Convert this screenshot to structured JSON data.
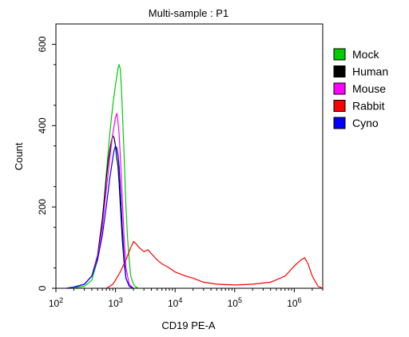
{
  "chart_data": {
    "type": "line",
    "title": "Multi-sample : P1",
    "xlabel": "CD19 PE-A",
    "ylabel": "Count",
    "x_scale": "log",
    "xlim": [
      100,
      3000000
    ],
    "ylim": [
      0,
      650
    ],
    "x_ticks": [
      {
        "value": 100,
        "base": "10",
        "exp": "2"
      },
      {
        "value": 1000,
        "base": "10",
        "exp": "3"
      },
      {
        "value": 10000,
        "base": "10",
        "exp": "4"
      },
      {
        "value": 100000,
        "base": "10",
        "exp": "5"
      },
      {
        "value": 1000000,
        "base": "10",
        "exp": "6"
      }
    ],
    "y_ticks": [
      0,
      200,
      400,
      600
    ],
    "y_tick_labels": [
      "0",
      "200",
      "400",
      "600"
    ],
    "grid": false,
    "legend_position": "right",
    "series": [
      {
        "name": "Mock",
        "color": "#00cc00",
        "x": [
          180,
          220,
          300,
          400,
          500,
          600,
          700,
          800,
          900,
          1000,
          1100,
          1150,
          1200,
          1250,
          1300,
          1350,
          1400,
          1450,
          1500,
          1600,
          1700,
          1800,
          2000,
          2200,
          2500
        ],
        "y": [
          0,
          2,
          5,
          20,
          70,
          160,
          280,
          380,
          450,
          500,
          540,
          550,
          540,
          500,
          440,
          380,
          320,
          260,
          200,
          120,
          70,
          30,
          10,
          3,
          0
        ]
      },
      {
        "name": "Human",
        "color": "#000000",
        "x": [
          150,
          200,
          300,
          400,
          500,
          600,
          650,
          700,
          750,
          800,
          850,
          900,
          950,
          1000,
          1050,
          1100,
          1150,
          1200,
          1300,
          1400,
          1500,
          1700,
          2000
        ],
        "y": [
          0,
          3,
          10,
          30,
          80,
          170,
          220,
          270,
          310,
          340,
          360,
          375,
          370,
          350,
          320,
          300,
          260,
          210,
          120,
          60,
          25,
          5,
          0
        ]
      },
      {
        "name": "Mouse",
        "color": "#ff00ff",
        "x": [
          150,
          200,
          300,
          400,
          500,
          600,
          700,
          800,
          900,
          950,
          1000,
          1050,
          1100,
          1150,
          1200,
          1300,
          1400,
          1500,
          1700,
          2000
        ],
        "y": [
          0,
          3,
          10,
          30,
          75,
          150,
          240,
          320,
          380,
          400,
          420,
          430,
          410,
          380,
          330,
          220,
          120,
          50,
          10,
          0
        ]
      },
      {
        "name": "Rabbit",
        "color": "#ff0000",
        "x": [
          700,
          800,
          900,
          1000,
          1200,
          1500,
          1800,
          2000,
          2200,
          2500,
          3000,
          3500,
          4000,
          5000,
          6000,
          8000,
          10000,
          15000,
          20000,
          30000,
          50000,
          100000,
          200000,
          400000,
          700000,
          1000000,
          1300000,
          1500000,
          1700000,
          2000000,
          2500000,
          3000000
        ],
        "y": [
          0,
          5,
          10,
          20,
          40,
          70,
          100,
          115,
          110,
          100,
          90,
          95,
          85,
          70,
          60,
          50,
          40,
          30,
          25,
          15,
          10,
          8,
          10,
          15,
          30,
          55,
          70,
          75,
          60,
          30,
          5,
          0
        ]
      },
      {
        "name": "Cyno",
        "color": "#0000ff",
        "x": [
          150,
          200,
          300,
          400,
          500,
          600,
          700,
          800,
          900,
          950,
          1000,
          1050,
          1100,
          1150,
          1200,
          1300,
          1400,
          1500,
          1700,
          2000
        ],
        "y": [
          0,
          3,
          10,
          30,
          70,
          130,
          200,
          270,
          320,
          340,
          350,
          345,
          330,
          300,
          250,
          150,
          70,
          25,
          5,
          0
        ]
      }
    ]
  }
}
